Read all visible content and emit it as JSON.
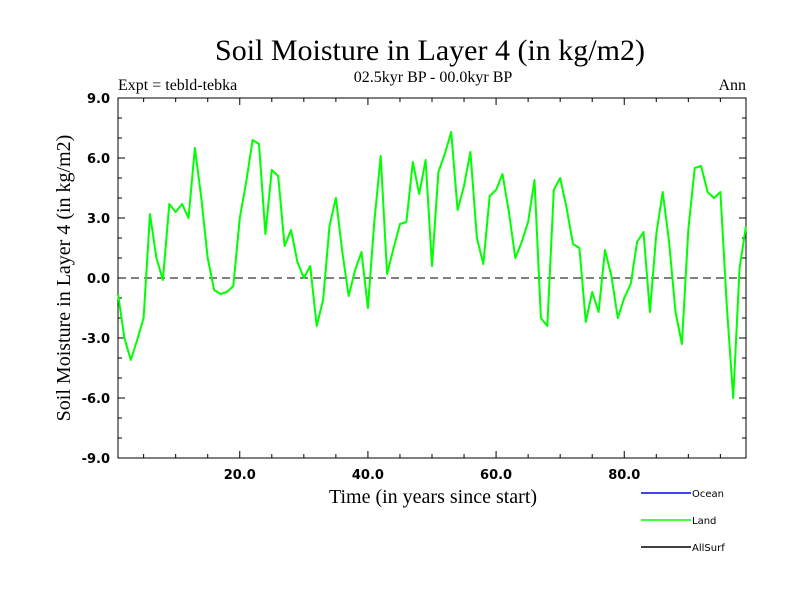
{
  "chart_data": {
    "type": "line",
    "title": "Soil Moisture in Layer 4 (in kg/m2)",
    "subtitle_left": "Expt = tebld-tebka",
    "subtitle_center": "02.5kyr BP - 00.0kyr BP",
    "subtitle_right": "Ann",
    "xlabel": "Time (in years since start)",
    "ylabel": "Soil Moisture in Layer 4 (in kg/m2)",
    "xlim": [
      1,
      99
    ],
    "ylim": [
      -9,
      9
    ],
    "xticks": [
      20,
      40,
      60,
      80
    ],
    "xtick_labels": [
      "20.0",
      "40.0",
      "60.0",
      "80.0"
    ],
    "yticks": [
      9,
      6,
      3,
      0,
      -3,
      -6,
      -9
    ],
    "ytick_labels": [
      "9.0",
      "6.0",
      "3.0",
      "0.0",
      "-3.0",
      "-6.0",
      "-9.0"
    ],
    "zero_line": true,
    "legend": [
      {
        "name": "Ocean",
        "color": "#0000ff"
      },
      {
        "name": "Land",
        "color": "#00ff00"
      },
      {
        "name": "AllSurf",
        "color": "#000000"
      }
    ],
    "series": [
      {
        "name": "Land",
        "color": "#00ff00",
        "x": [
          1,
          2,
          3,
          4,
          5,
          6,
          7,
          8,
          9,
          10,
          11,
          12,
          13,
          14,
          15,
          16,
          17,
          18,
          19,
          20,
          21,
          22,
          23,
          24,
          25,
          26,
          27,
          28,
          29,
          30,
          31,
          32,
          33,
          34,
          35,
          36,
          37,
          38,
          39,
          40,
          41,
          42,
          43,
          44,
          45,
          46,
          47,
          48,
          49,
          50,
          51,
          52,
          53,
          54,
          55,
          56,
          57,
          58,
          59,
          60,
          61,
          62,
          63,
          64,
          65,
          66,
          67,
          68,
          69,
          70,
          71,
          72,
          73,
          74,
          75,
          76,
          77,
          78,
          79,
          80,
          81,
          82,
          83,
          84,
          85,
          86,
          87,
          88,
          89,
          90,
          91,
          92,
          93,
          94,
          95,
          96,
          97,
          98,
          99
        ],
        "values": [
          -0.8,
          -3.0,
          -4.1,
          -3.1,
          -2.0,
          3.2,
          1.0,
          -0.1,
          3.7,
          3.3,
          3.7,
          3.0,
          6.5,
          4.0,
          1.0,
          -0.6,
          -0.8,
          -0.7,
          -0.4,
          3.0,
          4.8,
          6.9,
          6.7,
          2.2,
          5.4,
          5.1,
          1.6,
          2.4,
          0.8,
          0.0,
          0.6,
          -2.4,
          -1.1,
          2.6,
          4.0,
          1.3,
          -0.9,
          0.4,
          1.3,
          -1.5,
          2.8,
          6.1,
          0.2,
          1.5,
          2.7,
          2.8,
          5.8,
          4.2,
          5.9,
          0.6,
          5.3,
          6.2,
          7.3,
          3.4,
          4.6,
          6.3,
          2.0,
          0.7,
          4.1,
          4.4,
          5.2,
          3.3,
          1.0,
          1.8,
          2.8,
          4.9,
          -2.0,
          -2.4,
          4.4,
          5.0,
          3.5,
          1.7,
          1.5,
          -2.2,
          -0.7,
          -1.7,
          1.4,
          0.1,
          -2.0,
          -1.0,
          -0.3,
          1.8,
          2.3,
          -1.7,
          2.2,
          4.3,
          1.8,
          -1.7,
          -3.3,
          2.4,
          5.5,
          5.6,
          4.3,
          4.0,
          4.3,
          -1.4,
          -6.0,
          0.5,
          2.6
        ]
      }
    ]
  }
}
